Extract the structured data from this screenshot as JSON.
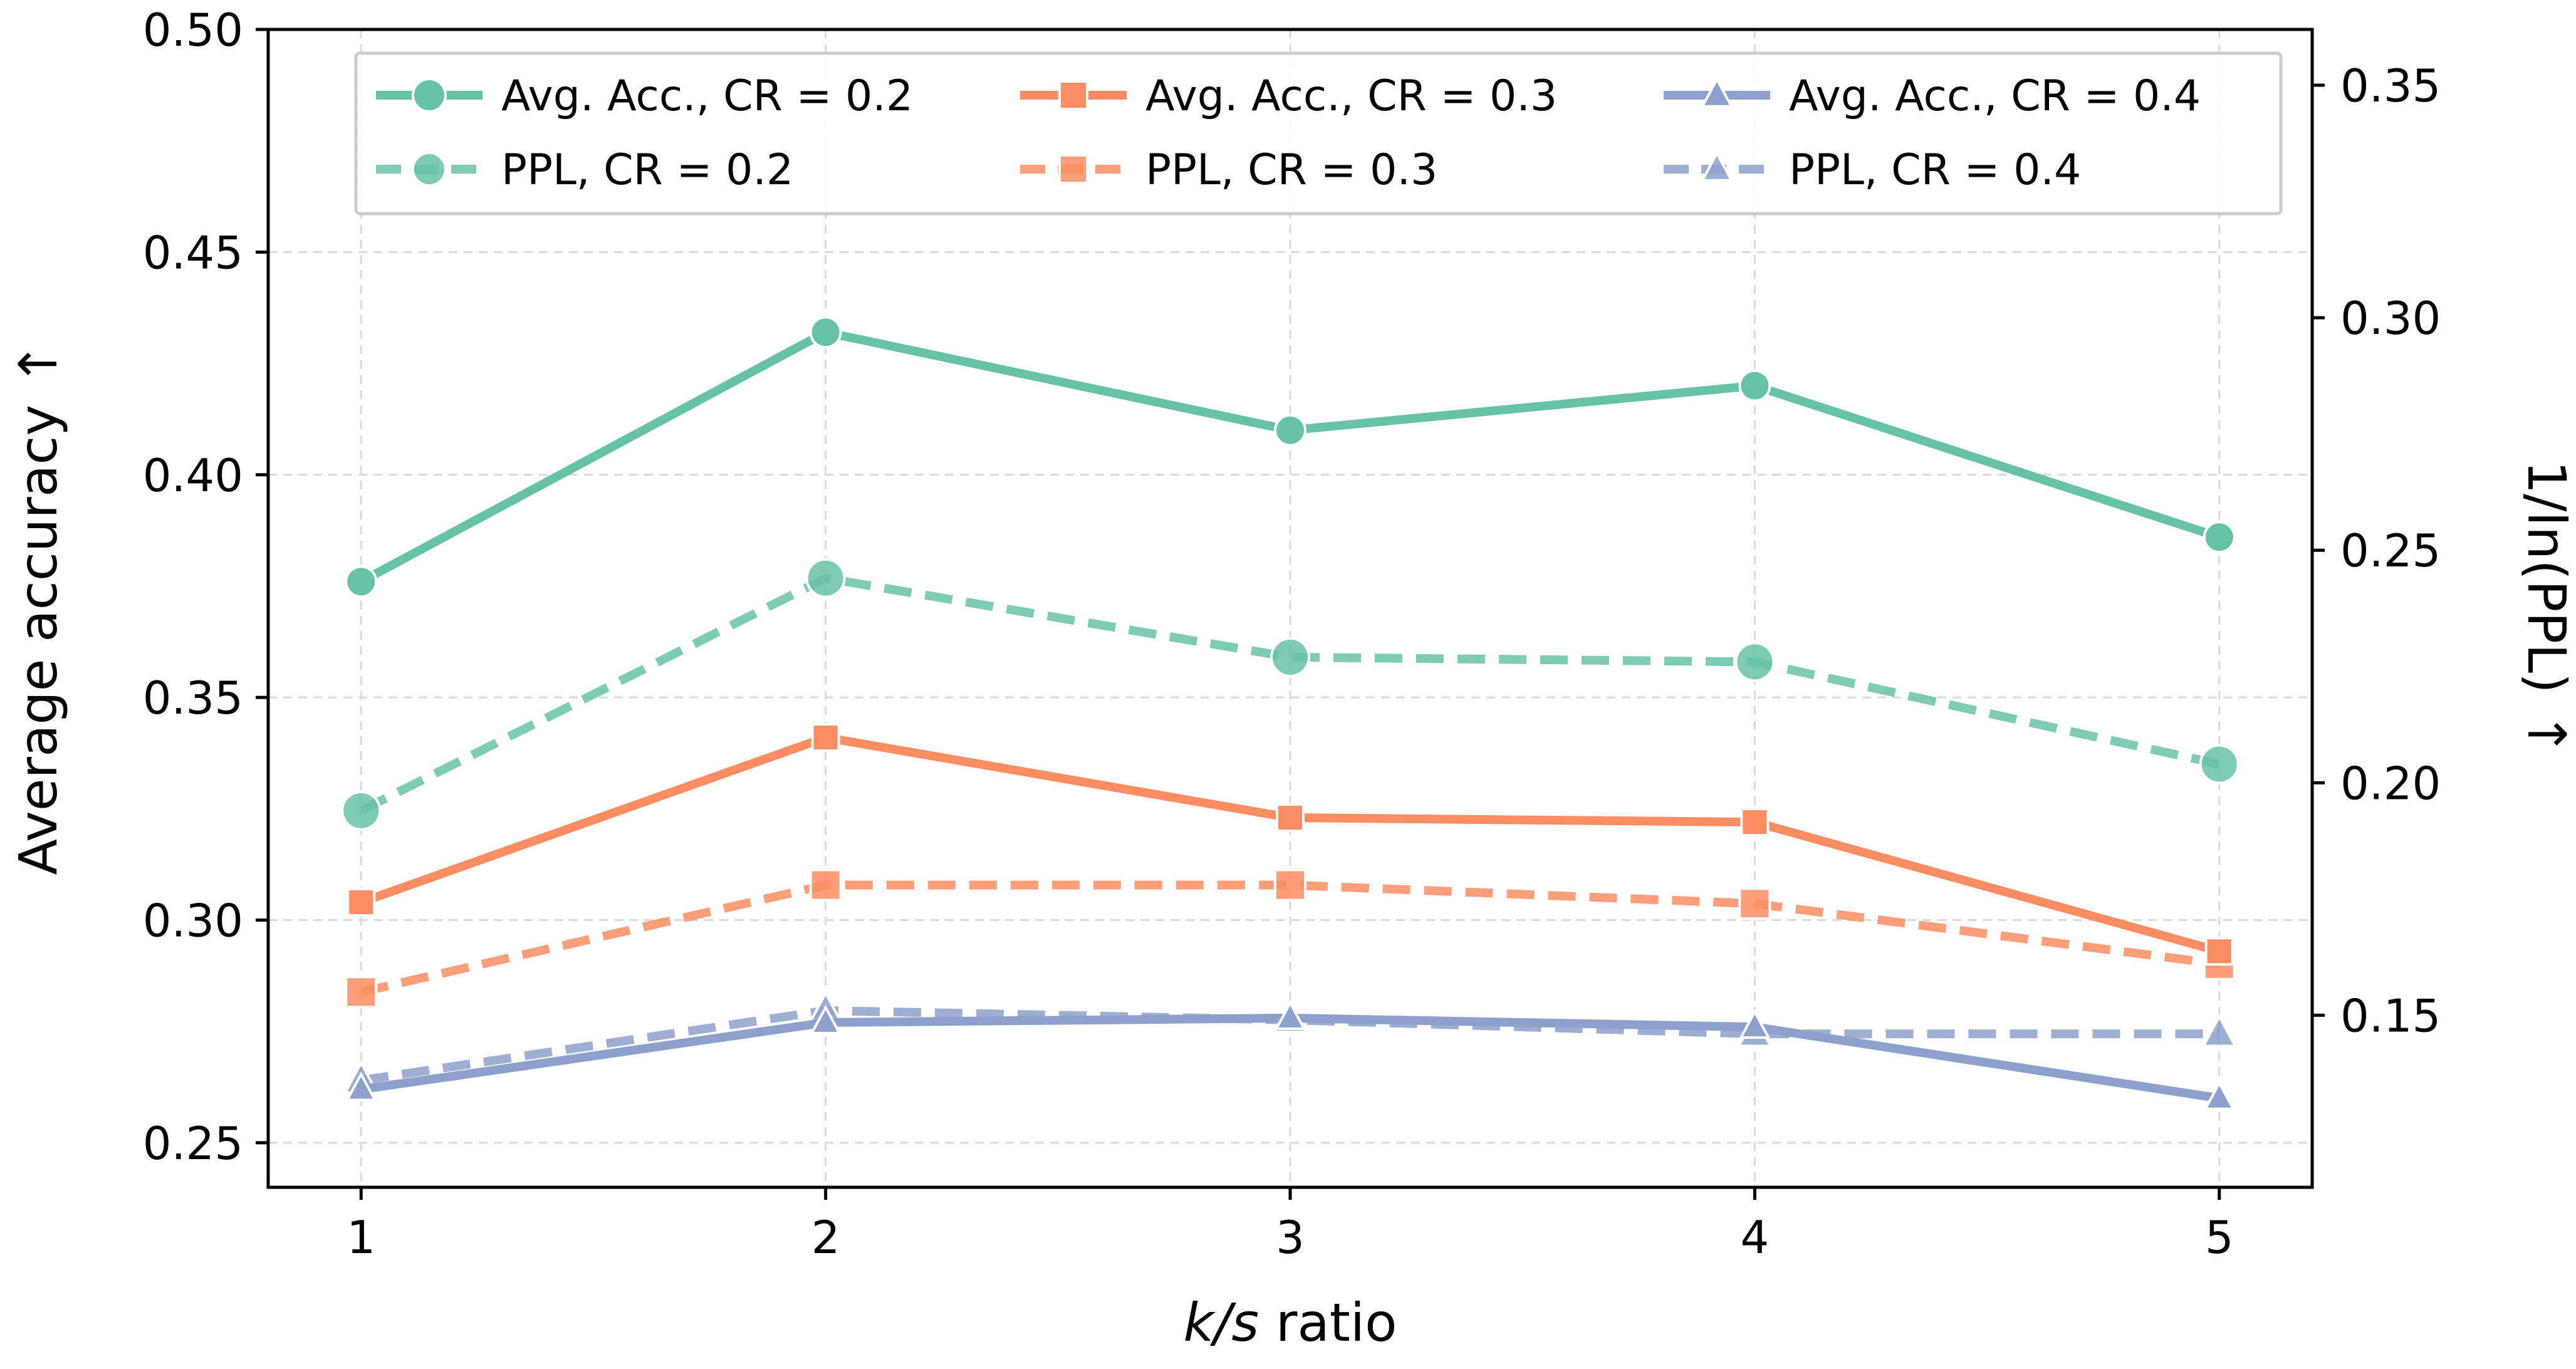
{
  "chart_data": {
    "type": "line",
    "title": "",
    "xlabel_italic": "k/s",
    "xlabel_rest": " ratio",
    "ylabel": "Average accuracy",
    "ylabel_arrow": "↑",
    "y2label": "1/ln(PPL)",
    "y2label_arrow": "↑",
    "x": [
      1,
      2,
      3,
      4,
      5
    ],
    "x_ticks": [
      "1",
      "2",
      "3",
      "4",
      "5"
    ],
    "xlim": [
      0.8,
      5.2
    ],
    "ylim": [
      0.24,
      0.5
    ],
    "y_ticks": [
      "0.25",
      "0.30",
      "0.35",
      "0.40",
      "0.45",
      "0.50"
    ],
    "y_tick_values": [
      0.25,
      0.3,
      0.35,
      0.4,
      0.45,
      0.5
    ],
    "y2lim": [
      0.113,
      0.362
    ],
    "y2_ticks": [
      "0.15",
      "0.20",
      "0.25",
      "0.30",
      "0.35"
    ],
    "y2_tick_values": [
      0.15,
      0.2,
      0.25,
      0.3,
      0.35
    ],
    "grid": true,
    "legend_position": "top",
    "series": [
      {
        "name": "Avg. Acc., CR = 0.2",
        "axis": "left",
        "style": "solid",
        "marker": "circle",
        "color": "#66c2a5",
        "values": [
          0.376,
          0.432,
          0.41,
          0.42,
          0.386
        ]
      },
      {
        "name": "Avg. Acc., CR = 0.3",
        "axis": "left",
        "style": "solid",
        "marker": "square",
        "color": "#fc8d62",
        "values": [
          0.304,
          0.341,
          0.323,
          0.322,
          0.293
        ]
      },
      {
        "name": "Avg. Acc., CR = 0.4",
        "axis": "left",
        "style": "solid",
        "marker": "triangle",
        "color": "#8da0cb",
        "values": [
          0.262,
          0.277,
          0.278,
          0.276,
          0.26
        ]
      },
      {
        "name": "PPL, CR = 0.2",
        "axis": "right",
        "style": "dashed",
        "marker": "circle",
        "color": "#66c2a5",
        "values": [
          0.194,
          0.244,
          0.227,
          0.226,
          0.204
        ]
      },
      {
        "name": "PPL, CR = 0.3",
        "axis": "right",
        "style": "dashed",
        "marker": "square",
        "color": "#fc8d62",
        "values": [
          0.155,
          0.178,
          0.178,
          0.174,
          0.161
        ]
      },
      {
        "name": "PPL, CR = 0.4",
        "axis": "right",
        "style": "dashed",
        "marker": "triangle",
        "color": "#8da0cb",
        "values": [
          0.136,
          0.151,
          0.149,
          0.146,
          0.146
        ]
      }
    ]
  }
}
